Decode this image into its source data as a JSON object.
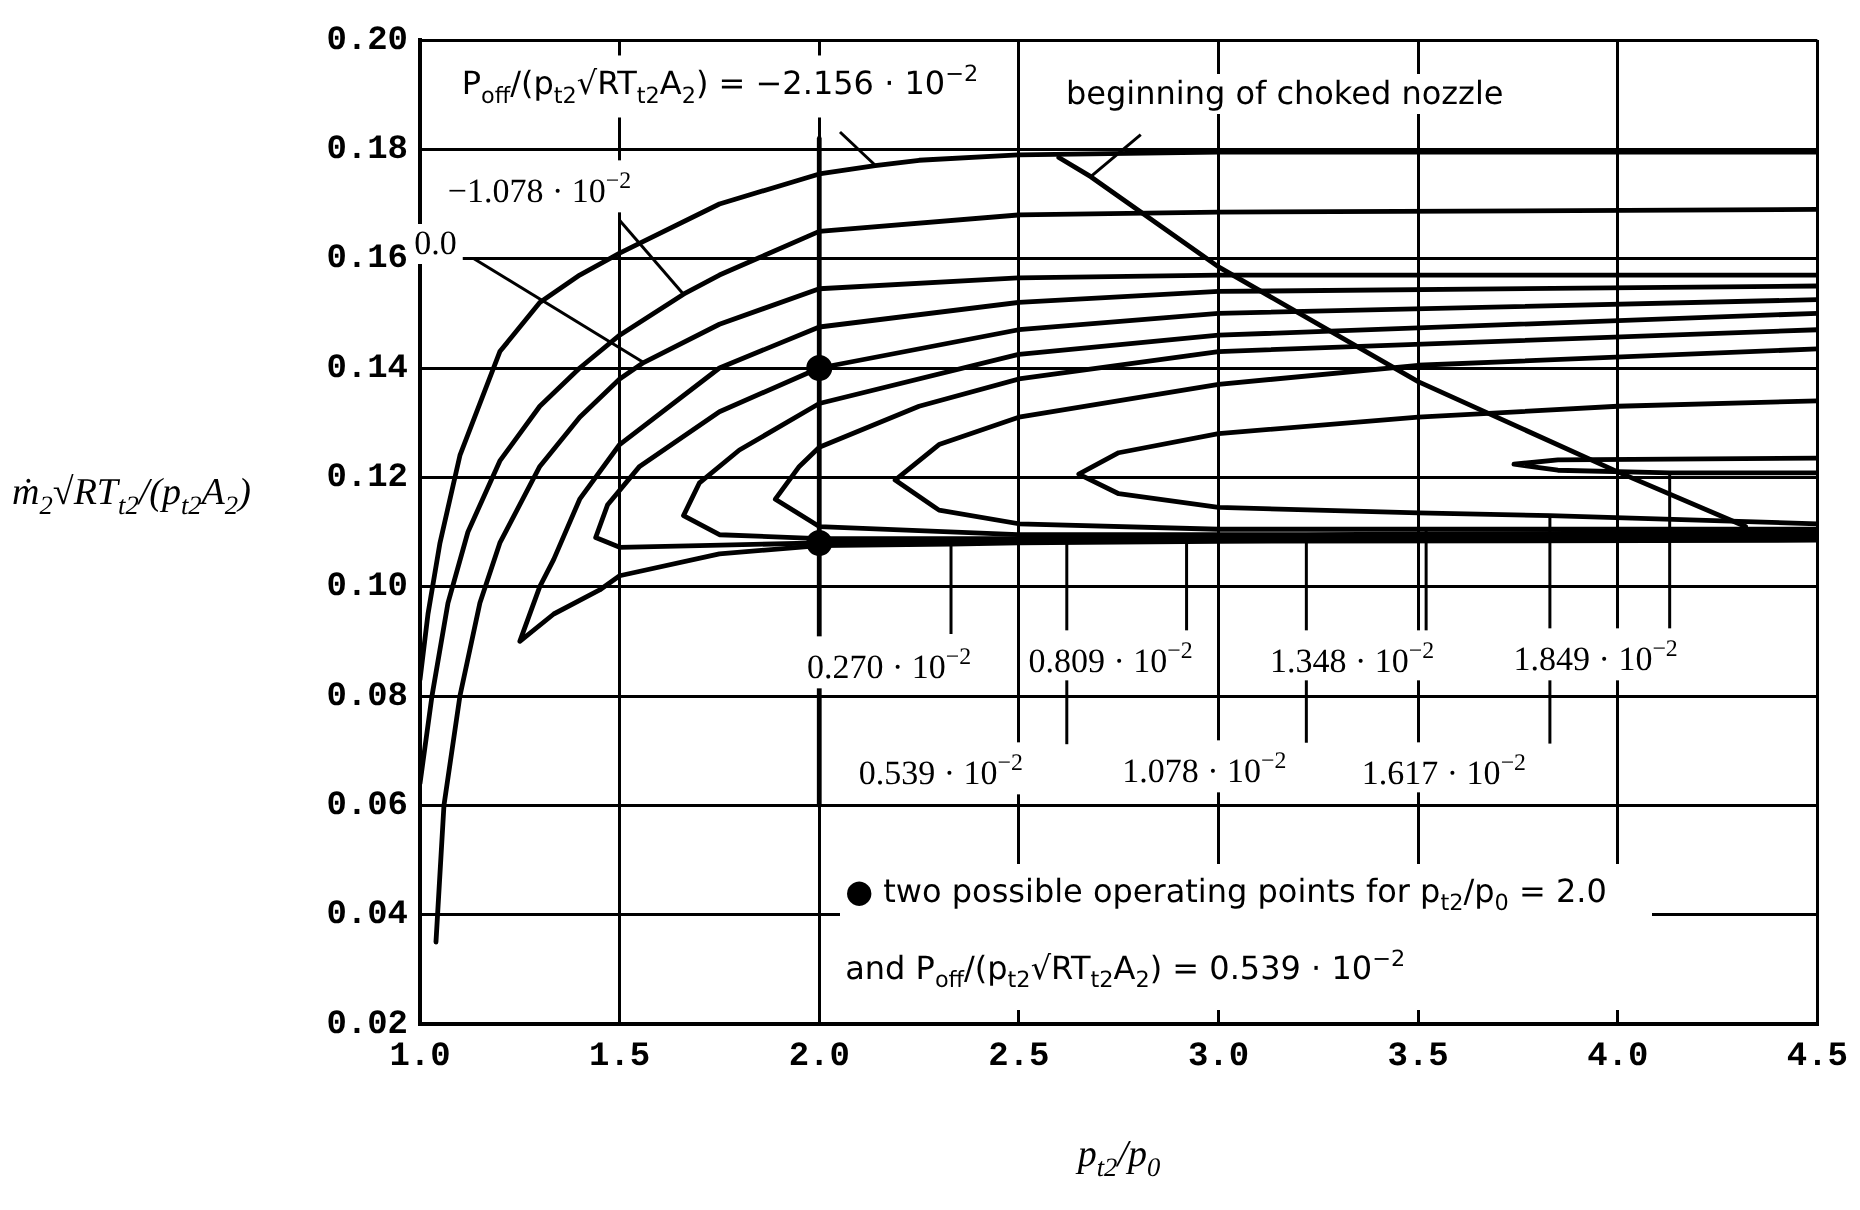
{
  "chart_data": {
    "type": "line",
    "xlabel": "p$_{t2}$/p$_{0}$",
    "ylabel": "ṁ$_{2}$√RT$_{t2}$/(p$_{t2}$A$_{2}$)",
    "xlim": [
      1.0,
      4.5
    ],
    "xticks": [
      {
        "value": 1,
        "label": "1.0"
      },
      1.5,
      {
        "value": 2,
        "label": "2.0"
      },
      2.5,
      {
        "value": 3,
        "label": "3.0"
      },
      3.5,
      {
        "value": 4,
        "label": "4.0"
      },
      4.5
    ],
    "ylim": [
      0.02,
      0.2
    ],
    "yticks": [
      0.02,
      0.04,
      0.06,
      0.08,
      {
        "value": 0.1,
        "label": "0.10"
      },
      0.12,
      0.14,
      0.16,
      0.18,
      {
        "value": 0.2,
        "label": "0.20"
      }
    ],
    "grid": true,
    "series": [
      {
        "color": "#000000",
        "x": [
          1.0,
          1.02,
          1.05,
          1.1,
          1.2,
          1.3,
          1.4,
          1.5,
          1.75,
          2.0,
          2.14,
          2.25,
          2.5,
          3.0,
          4.5
        ],
        "values": [
          0.083,
          0.095,
          0.108,
          0.124,
          0.143,
          0.152,
          0.157,
          0.161,
          0.17,
          0.1755,
          0.177,
          0.178,
          0.179,
          0.1795,
          0.1795
        ]
      },
      {
        "color": "#000000",
        "x": [
          1.0,
          1.03,
          1.07,
          1.12,
          1.2,
          1.3,
          1.4,
          1.5,
          1.66,
          1.75,
          2.0,
          2.5,
          3.0,
          4.5
        ],
        "values": [
          0.064,
          0.08,
          0.097,
          0.11,
          0.123,
          0.133,
          0.14,
          0.146,
          0.1535,
          0.157,
          0.165,
          0.168,
          0.1685,
          0.169
        ]
      },
      {
        "color": "#000000",
        "x": [
          1.04,
          1.06,
          1.1,
          1.15,
          1.2,
          1.3,
          1.4,
          1.5,
          1.56,
          1.75,
          2.0,
          2.5,
          3.0,
          4.5
        ],
        "values": [
          0.035,
          0.06,
          0.08,
          0.097,
          0.108,
          0.122,
          0.131,
          0.138,
          0.141,
          0.148,
          0.1545,
          0.1565,
          0.157,
          0.157
        ]
      },
      {
        "color": "#000000",
        "x": [
          4.5,
          3.0,
          2.5,
          2.33,
          2.0,
          1.75,
          1.5,
          1.45,
          1.335,
          1.25,
          1.3,
          1.335,
          1.4,
          1.5,
          1.75,
          2.0,
          2.5,
          3.0,
          4.5
        ],
        "values": [
          0.1085,
          0.1083,
          0.108,
          0.1078,
          0.1075,
          0.106,
          0.102,
          0.0994,
          0.095,
          0.09,
          0.1,
          0.105,
          0.116,
          0.126,
          0.14,
          0.1475,
          0.152,
          0.154,
          0.155
        ]
      },
      {
        "color": "#000000",
        "x": [
          4.5,
          3.0,
          2.62,
          2.5,
          2.0,
          1.7,
          1.5,
          1.44,
          1.47,
          1.55,
          1.75,
          2.0,
          2.5,
          3.0,
          4.5
        ],
        "values": [
          0.109,
          0.1087,
          0.1085,
          0.1084,
          0.108,
          0.1075,
          0.1072,
          0.109,
          0.115,
          0.122,
          0.132,
          0.14,
          0.147,
          0.15,
          0.1525
        ]
      },
      {
        "color": "#000000",
        "x": [
          4.5,
          3.0,
          2.92,
          2.5,
          2.0,
          1.75,
          1.66,
          1.7,
          1.8,
          2.0,
          2.5,
          3.0,
          4.5
        ],
        "values": [
          0.1095,
          0.109,
          0.109,
          0.1088,
          0.1088,
          0.1095,
          0.113,
          0.119,
          0.125,
          0.1335,
          0.1425,
          0.146,
          0.15
        ]
      },
      {
        "color": "#000000",
        "x": [
          4.5,
          3.22,
          3.0,
          2.5,
          2.0,
          1.89,
          1.95,
          2.0,
          2.25,
          2.5,
          3.0,
          4.5
        ],
        "values": [
          0.11,
          0.1095,
          0.1095,
          0.1095,
          0.111,
          0.116,
          0.122,
          0.1255,
          0.133,
          0.138,
          0.143,
          0.147
        ]
      },
      {
        "color": "#000000",
        "x": [
          4.5,
          3.52,
          3.0,
          2.5,
          2.3,
          2.19,
          2.3,
          2.5,
          3.0,
          3.5,
          4.5
        ],
        "values": [
          0.1105,
          0.1105,
          0.1105,
          0.1115,
          0.114,
          0.1195,
          0.126,
          0.131,
          0.137,
          0.1405,
          0.1435
        ]
      },
      {
        "color": "#000000",
        "x": [
          4.5,
          3.83,
          3.5,
          3.0,
          2.75,
          2.65,
          2.75,
          3.0,
          3.5,
          4.0,
          4.5
        ],
        "values": [
          0.1115,
          0.113,
          0.1135,
          0.1145,
          0.117,
          0.1206,
          0.1245,
          0.128,
          0.131,
          0.133,
          0.134
        ]
      },
      {
        "color": "#000000",
        "x": [
          4.5,
          4.13,
          3.85,
          3.74,
          3.85,
          4.5
        ],
        "values": [
          0.1208,
          0.1208,
          0.1213,
          0.1224,
          0.1232,
          0.1235
        ]
      },
      {
        "color": "#000000",
        "x": [
          2.6,
          2.68,
          3.0,
          3.5,
          4.0,
          4.32
        ],
        "values": [
          0.1785,
          0.175,
          0.1585,
          0.1375,
          0.121,
          0.111
        ]
      },
      {
        "color": "#000000",
        "x": [
          2.0,
          2.0
        ],
        "values": [
          0.06,
          0.182
        ]
      },
      {
        "type": "scatter",
        "marker": "circle",
        "color": "#000000",
        "x": [
          2.0,
          2.0
        ],
        "values": [
          0.14,
          0.108
        ]
      }
    ],
    "annotations": [
      "P$_{off}$/(p$_{t2}$√RT$_{t2}$A$_{2}$) = −2.156 · 10$^{−2}$",
      {
        "text": "−1.078 · 10$^{−2}$",
        "x": 1.66,
        "y": 0.1535
      },
      {
        "text": "0.0",
        "x": 1.56,
        "y": 0.141
      },
      {
        "text": "0.270 · 10$^{−2}$",
        "x": 2.33,
        "y": 0.1078
      },
      {
        "text": "0.539 · 10$^{−2}$",
        "x": 2.62,
        "y": 0.1085
      },
      {
        "text": "0.809 · 10$^{−2}$",
        "x": 2.92,
        "y": 0.109
      },
      {
        "text": "1.078 · 10$^{−2}$",
        "x": 3.22,
        "y": 0.1095
      },
      {
        "text": "1.348 · 10$^{−2}$",
        "x": 3.52,
        "y": 0.1105
      },
      {
        "text": "1.617 · 10$^{−2}$",
        "x": 3.83,
        "y": 0.113
      },
      {
        "text": "1.849 · 10$^{−2}$",
        "x": 4.13,
        "y": 0.1208
      },
      {
        "text": "beginning of choked nozzle",
        "x": 2.68,
        "y": 0.175
      },
      "● two possible operating points for p$_{t2}$/p$_{0}$ = 2.0 and P$_{off}$/(p$_{t2}$√RT$_{t2}$A$_{2}$) = 0.539 · 10$^{−2}$"
    ]
  }
}
